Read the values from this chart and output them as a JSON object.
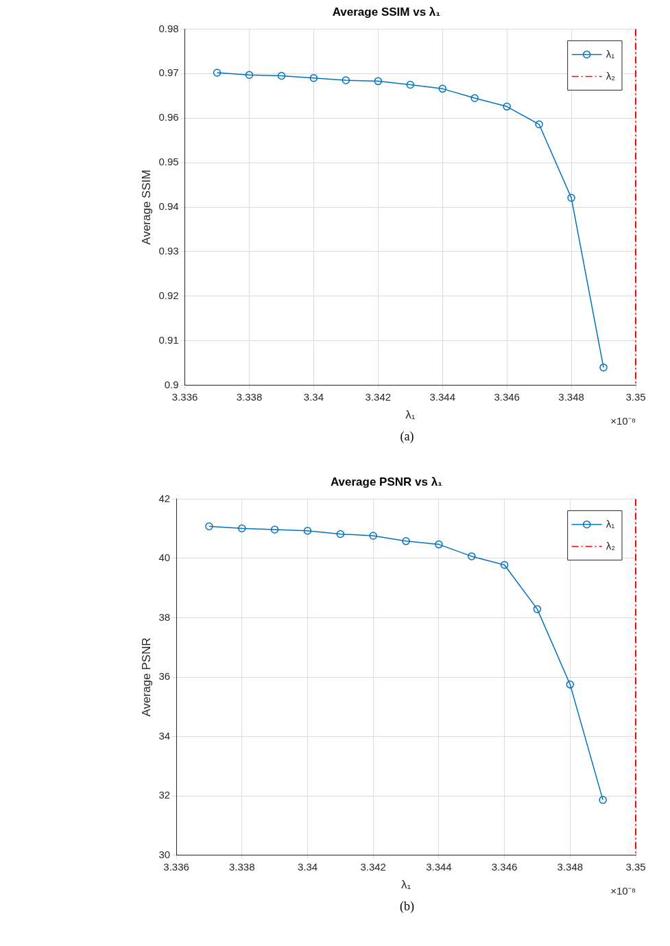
{
  "chart_data": [
    {
      "type": "line",
      "title": "Average SSIM vs λ₁",
      "xlabel": "λ₁",
      "ylabel": "Average SSIM",
      "annotations": [
        "×10⁻⁸",
        "(a)"
      ],
      "x": [
        3.337,
        3.338,
        3.339,
        3.34,
        3.341,
        3.342,
        3.343,
        3.344,
        3.345,
        3.346,
        3.347,
        3.348,
        3.349
      ],
      "xlim": [
        3.336,
        3.35
      ],
      "xticks": [
        3.336,
        3.338,
        3.34,
        3.342,
        3.344,
        3.346,
        3.348,
        3.35
      ],
      "ylim": [
        0.9,
        0.98
      ],
      "yticks": [
        0.9,
        0.91,
        0.92,
        0.93,
        0.94,
        0.95,
        0.96,
        0.97,
        0.98
      ],
      "grid": true,
      "legend": "top right",
      "series": [
        {
          "name": "λ₁",
          "color": "#0072bd",
          "marker": "circle",
          "line_style": "solid",
          "values": [
            0.9702,
            0.9697,
            0.9695,
            0.969,
            0.9685,
            0.9683,
            0.9675,
            0.9666,
            0.9645,
            0.9626,
            0.9586,
            0.9421,
            0.904
          ]
        }
      ],
      "ref_lines": [
        {
          "axis": "x",
          "value": 3.35,
          "label": "λ₂",
          "color": "#ff0000",
          "line_style": "dashed"
        }
      ]
    },
    {
      "type": "line",
      "title": "Average PSNR vs λ₁",
      "xlabel": "λ₁",
      "ylabel": "Average PSNR",
      "annotations": [
        "×10⁻⁸",
        "(b)"
      ],
      "x": [
        3.337,
        3.338,
        3.339,
        3.34,
        3.341,
        3.342,
        3.343,
        3.344,
        3.345,
        3.346,
        3.347,
        3.348,
        3.349
      ],
      "xlim": [
        3.336,
        3.35
      ],
      "xticks": [
        3.336,
        3.338,
        3.34,
        3.342,
        3.344,
        3.346,
        3.348,
        3.35
      ],
      "ylim": [
        30,
        42
      ],
      "yticks": [
        30,
        32,
        34,
        36,
        38,
        40,
        42
      ],
      "grid": true,
      "legend": "top right",
      "series": [
        {
          "name": "λ₁",
          "color": "#0072bd",
          "marker": "circle",
          "line_style": "solid",
          "values": [
            41.08,
            41.01,
            40.97,
            40.93,
            40.82,
            40.76,
            40.58,
            40.47,
            40.07,
            39.78,
            38.29,
            35.75,
            31.86
          ]
        }
      ],
      "ref_lines": [
        {
          "axis": "x",
          "value": 3.35,
          "label": "λ₂",
          "color": "#ff0000",
          "line_style": "dashed"
        }
      ]
    }
  ]
}
